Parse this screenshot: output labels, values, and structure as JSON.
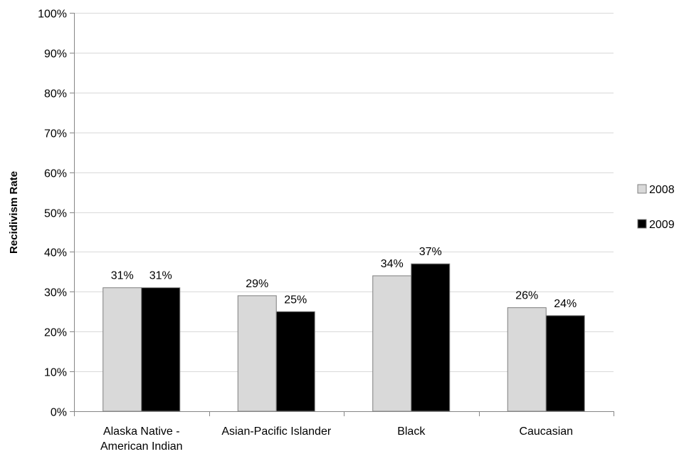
{
  "chart_data": {
    "type": "bar",
    "title": "",
    "xlabel": "",
    "ylabel": "Recidivism Rate",
    "categories": [
      [
        "Alaska Native -",
        "American Indian"
      ],
      [
        "Asian-Pacific Islander"
      ],
      [
        "Black"
      ],
      [
        "Caucasian"
      ]
    ],
    "series": [
      {
        "name": "2008",
        "values": [
          31,
          29,
          34,
          26
        ],
        "color": "#d9d9d9"
      },
      {
        "name": "2009",
        "values": [
          31,
          25,
          37,
          24
        ],
        "color": "#000000"
      }
    ],
    "data_labels": [
      [
        "31%",
        "29%",
        "34%",
        "26%"
      ],
      [
        "31%",
        "25%",
        "37%",
        "24%"
      ]
    ],
    "ylim": [
      0,
      100
    ],
    "y_ticks": [
      0,
      10,
      20,
      30,
      40,
      50,
      60,
      70,
      80,
      90,
      100
    ],
    "y_tick_format": "percent",
    "grid": true,
    "legend_position": "right"
  }
}
